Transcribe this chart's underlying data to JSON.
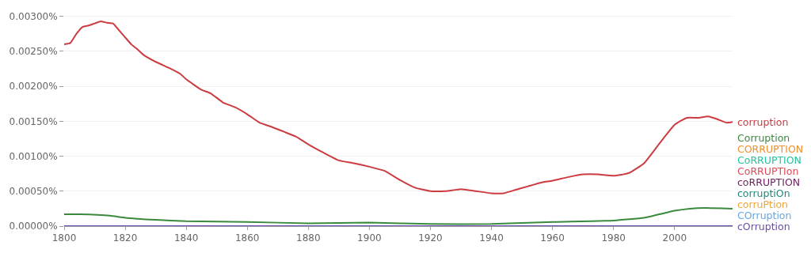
{
  "chart_data": {
    "type": "line",
    "xlim": [
      1800,
      2019
    ],
    "xticks": [
      1800,
      1820,
      1840,
      1860,
      1880,
      1900,
      1920,
      1940,
      1960,
      1980,
      2000
    ],
    "ylim": [
      0,
      0.00302
    ],
    "yticks": [
      {
        "value": 0,
        "label": "0.00000%"
      },
      {
        "value": 0.0005,
        "label": "0.00050%"
      },
      {
        "value": 0.001,
        "label": "0.00100%"
      },
      {
        "value": 0.0015,
        "label": "0.00150%"
      },
      {
        "value": 0.002,
        "label": "0.00200%"
      },
      {
        "value": 0.0025,
        "label": "0.00250%"
      },
      {
        "value": 0.003,
        "label": "0.00300%"
      }
    ],
    "grid": "y",
    "legend": false,
    "marker": "none",
    "line_style": "solid",
    "series": [
      {
        "name": "corruption",
        "color": "#cc3b40",
        "x": [
          1800,
          1802,
          1804,
          1806,
          1808,
          1810,
          1812,
          1814,
          1816,
          1818,
          1820,
          1822,
          1824,
          1826,
          1830,
          1835,
          1838,
          1840,
          1845,
          1848,
          1852,
          1856,
          1860,
          1864,
          1868,
          1872,
          1876,
          1880,
          1885,
          1890,
          1895,
          1900,
          1905,
          1910,
          1915,
          1920,
          1925,
          1930,
          1935,
          1940,
          1944,
          1948,
          1952,
          1956,
          1960,
          1965,
          1970,
          1975,
          1980,
          1985,
          1990,
          1995,
          2000,
          2004,
          2008,
          2011,
          2014,
          2017,
          2019
        ],
        "values": [
          0.0026,
          0.00262,
          0.00275,
          0.00285,
          0.00287,
          0.0029,
          0.00293,
          0.00291,
          0.0029,
          0.0028,
          0.0027,
          0.0026,
          0.00253,
          0.00245,
          0.00235,
          0.00225,
          0.00218,
          0.0021,
          0.00195,
          0.0019,
          0.00177,
          0.0017,
          0.0016,
          0.00148,
          0.00142,
          0.00135,
          0.00128,
          0.00117,
          0.00105,
          0.00094,
          0.0009,
          0.00085,
          0.00079,
          0.00066,
          0.00055,
          0.0005,
          0.0005,
          0.00053,
          0.0005,
          0.00047,
          0.00047,
          0.00052,
          0.00057,
          0.00062,
          0.00065,
          0.0007,
          0.00074,
          0.00074,
          0.00072,
          0.00076,
          0.0009,
          0.00118,
          0.00145,
          0.00155,
          0.00155,
          0.00157,
          0.00153,
          0.00148,
          0.00149
        ]
      },
      {
        "name": "Corruption",
        "color": "#3a8a3e",
        "x": [
          1800,
          1805,
          1815,
          1820,
          1830,
          1840,
          1860,
          1880,
          1900,
          1920,
          1940,
          1960,
          1980,
          1990,
          2000,
          2005,
          2010,
          2019
        ],
        "values": [
          0.00017,
          0.00017,
          0.00015,
          0.00012,
          9e-05,
          7e-05,
          6e-05,
          4e-05,
          5e-05,
          3e-05,
          3e-05,
          6e-05,
          8e-05,
          0.00012,
          0.00022,
          0.00025,
          0.00026,
          0.00025
        ]
      },
      {
        "name": "CORRUPTION",
        "color": "#f0902c"
      },
      {
        "name": "CoRRUPTION",
        "color": "#22c49c"
      },
      {
        "name": "CoRRUPTIon",
        "color": "#dd4a58"
      },
      {
        "name": "coRRUPTION",
        "color": "#6e1f5e"
      },
      {
        "name": "corruptiOn",
        "color": "#1b8a7e"
      },
      {
        "name": "corruPtion",
        "color": "#f2a632"
      },
      {
        "name": "COrruption",
        "color": "#64a8e8"
      },
      {
        "name": "cOrruption",
        "color": "#6a4cb0",
        "x": [
          1800,
          2019
        ],
        "values": [
          0,
          0
        ]
      }
    ]
  }
}
